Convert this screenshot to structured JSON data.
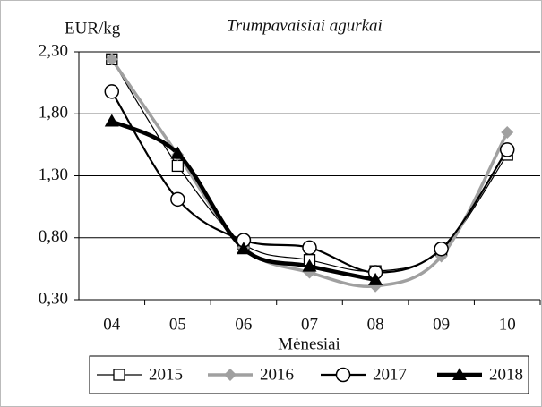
{
  "chart_data": {
    "type": "line",
    "title": "Trumpavaisiai agurkai",
    "y_label": "EUR/kg",
    "x_label": "Mėnesiai",
    "categories": [
      "04",
      "05",
      "06",
      "07",
      "08",
      "09",
      "10"
    ],
    "series": [
      {
        "name": "2015",
        "color": "#000000",
        "values": [
          2.24,
          1.38,
          0.75,
          0.62,
          0.53,
          0.7,
          1.47
        ]
      },
      {
        "name": "2016",
        "color": "#a0a0a0",
        "values": [
          2.24,
          1.47,
          0.72,
          0.52,
          0.41,
          0.65,
          1.65
        ]
      },
      {
        "name": "2017",
        "color": "#000000",
        "values": [
          1.98,
          1.11,
          0.78,
          0.72,
          0.52,
          0.71,
          1.51
        ]
      },
      {
        "name": "2018",
        "color": "#000000",
        "values": [
          1.74,
          1.48,
          0.71,
          0.57,
          0.46,
          null,
          null
        ]
      }
    ],
    "ylim": [
      0.3,
      2.3
    ],
    "yticks": [
      {
        "value": 0.3,
        "label": "0,30"
      },
      {
        "value": 0.8,
        "label": "0,80"
      },
      {
        "value": 1.3,
        "label": "1,30"
      },
      {
        "value": 1.8,
        "label": "1,80"
      },
      {
        "value": 2.3,
        "label": "2,30"
      }
    ],
    "grid": true,
    "legend": "bottom"
  }
}
